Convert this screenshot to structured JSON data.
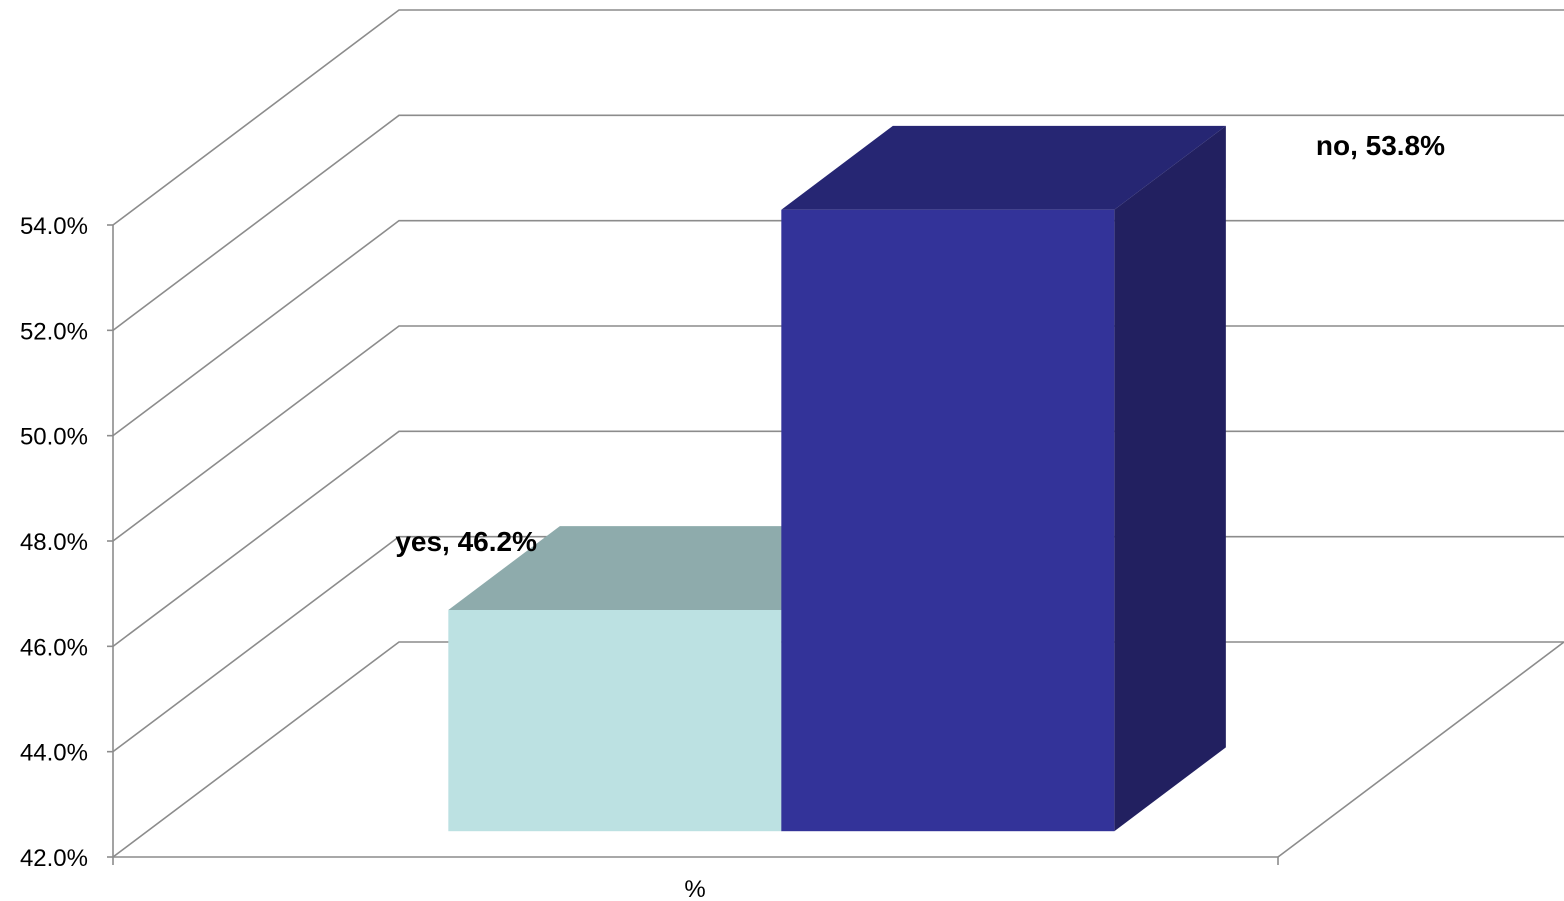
{
  "chart_data": {
    "type": "bar",
    "style": "3d-column",
    "categories": [
      "%"
    ],
    "series": [
      {
        "name": "yes",
        "values": [
          46.2
        ],
        "color": "#bce1e2",
        "top_color": "#8eabac",
        "side_color": "#7e9899"
      },
      {
        "name": "no",
        "values": [
          53.8
        ],
        "color": "#333399",
        "top_color": "#262673",
        "side_color": "#222060"
      }
    ],
    "data_labels": [
      "yes, 46.2%",
      "no, 53.8%"
    ],
    "title": "",
    "xlabel": "",
    "ylabel": "",
    "ylim": [
      42,
      54
    ],
    "y_ticks": [
      "42.0%",
      "44.0%",
      "46.0%",
      "48.0%",
      "50.0%",
      "52.0%",
      "54.0%"
    ],
    "grid": true,
    "legend": "none"
  }
}
